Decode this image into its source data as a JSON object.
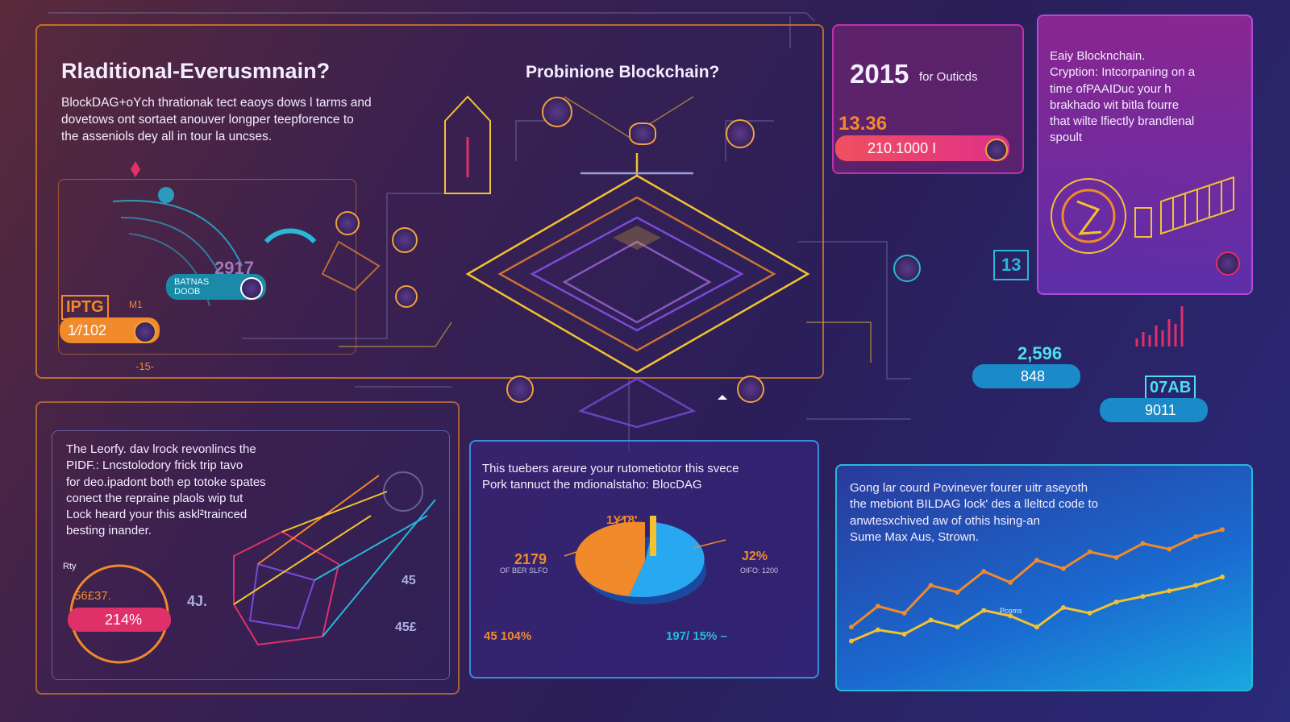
{
  "colors": {
    "orange": "#f08a2a",
    "yellow": "#f2c230",
    "cyan": "#28b8d8",
    "pink": "#e0306a",
    "magenta": "#c030b0",
    "purple": "#7a4ad8",
    "line": "#9aa0d8"
  },
  "header": {
    "title_left": "Rladitional-Everusmnain?",
    "title_center": "Probinione Blockchain?",
    "intro": [
      "BlockDAG+oYch thrationak tect eaoys dows l tarms and",
      "dovetows ont sortaet anouver longper teepforence to",
      "the asseniols dey all in tour la uncses."
    ]
  },
  "left_panel": {
    "year": "2917",
    "pill_label_1": "BATNAS",
    "pill_label_2": "DOOB",
    "tag": "IPTG",
    "tag_small": "M1",
    "value": "1⁄/102",
    "dash_label": "-15-"
  },
  "top_right_stats": {
    "year": "2015",
    "year_suffix": "for Outicds",
    "value_1": "13.36",
    "value_2": "210.1000 I"
  },
  "top_right_panel": {
    "text": [
      "Eaiy Blocknchain.",
      "Cryption: Intcorpaning on a",
      "time ofPAAIDuc your h",
      "brakhado wit bitla fourre",
      "that wilte lfiectly brandlenal",
      "spoult"
    ]
  },
  "right_middle": {
    "badge": "13",
    "value_a": "2,596",
    "value_a_sub": "848",
    "value_b": "07AB",
    "value_b_sub": "9011"
  },
  "bottom_left_panel": {
    "text": [
      "The Leorfy. dav lrock revonlincs the",
      "PIDF.: Lncstolodory frick trip tavo",
      "for deo.ipadont both ep totoke spates",
      "conect the repraine plaols wip tut",
      "Lock heard your this askl²trainced",
      "besting inander."
    ],
    "label_top": "Rty",
    "value_small": "56£37.",
    "pill": "214%",
    "mark_a": "4J.",
    "mark_b": "45",
    "mark_c": "45£"
  },
  "bottom_center_panel": {
    "text": [
      "This tuebers areure your rutometiotor this svece",
      "Pork tannuct the mdionalstaho: BlocDAG"
    ],
    "pie_label_top": "1Y18'",
    "pie_left_value": "2179",
    "pie_left_sub": "OF BER SLFO",
    "pie_right_value": "J2%",
    "pie_right_sub": "OIFO: 1200",
    "footer_left": "45 104%",
    "footer_right": "197/ 15% –"
  },
  "bottom_right_panel": {
    "text": [
      "Gong lar courd Povinever fourer uitr aseyoth",
      "the mebiont BILDAG lock' des a lleltcd code to",
      "anwtesxchived aw of othis hsing-an",
      "Sume Max Aus, Strown."
    ],
    "chart_label": "Pcoms"
  },
  "chart_data": {
    "type": "line",
    "series": [
      {
        "values": [
          30,
          45,
          40,
          60,
          55,
          70,
          62,
          78,
          72,
          84,
          80,
          90,
          86,
          95,
          100
        ]
      },
      {
        "values": [
          20,
          28,
          25,
          35,
          30,
          42,
          38,
          30,
          44,
          40,
          48,
          52,
          56,
          60,
          66
        ]
      }
    ]
  }
}
